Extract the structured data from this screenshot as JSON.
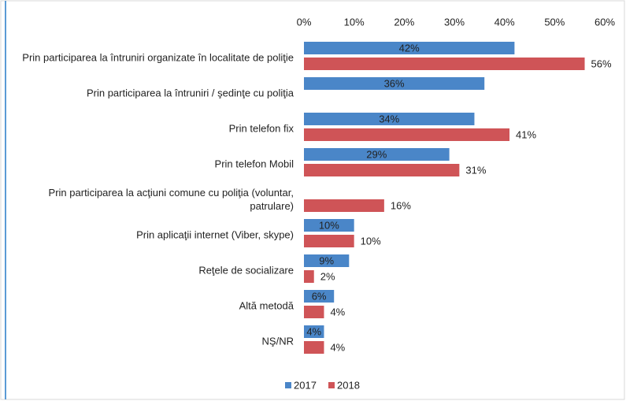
{
  "chart_data": {
    "type": "bar",
    "orientation": "horizontal",
    "categories": [
      "Prin participarea la întruniri organizate în localitate de poliţie",
      "Prin participarea la întruniri / şedinţe cu poliţia",
      "Prin telefon fix",
      "Prin telefon Mobil",
      "Prin participarea la acţiuni comune cu poliţia (voluntar, patrulare)",
      "Prin aplicaţii internet  (Viber, skype)",
      "Reţele de socializare",
      "Altă metodă",
      "NŞ/NR"
    ],
    "series": [
      {
        "name": "2017",
        "color": "#4a86c8",
        "values": [
          42,
          36,
          34,
          29,
          null,
          10,
          9,
          6,
          4
        ],
        "value_labels": [
          "42%",
          "36%",
          "34%",
          "29%",
          null,
          "10%",
          "9%",
          "6%",
          "4%"
        ]
      },
      {
        "name": "2018",
        "color": "#cf5457",
        "values": [
          56,
          null,
          41,
          31,
          16,
          10,
          2,
          4,
          4
        ],
        "value_labels": [
          "56%",
          null,
          "41%",
          "31%",
          "16%",
          "10%",
          "2%",
          "4%",
          "4%"
        ]
      }
    ],
    "xlim": [
      0,
      60
    ],
    "xticks": [
      {
        "value": 0,
        "label": "0%"
      },
      {
        "value": 10,
        "label": "10%"
      },
      {
        "value": 20,
        "label": "20%"
      },
      {
        "value": 30,
        "label": "30%"
      },
      {
        "value": 40,
        "label": "40%"
      },
      {
        "value": 50,
        "label": "50%"
      },
      {
        "value": 60,
        "label": "60%"
      }
    ],
    "legend": "bottom"
  }
}
